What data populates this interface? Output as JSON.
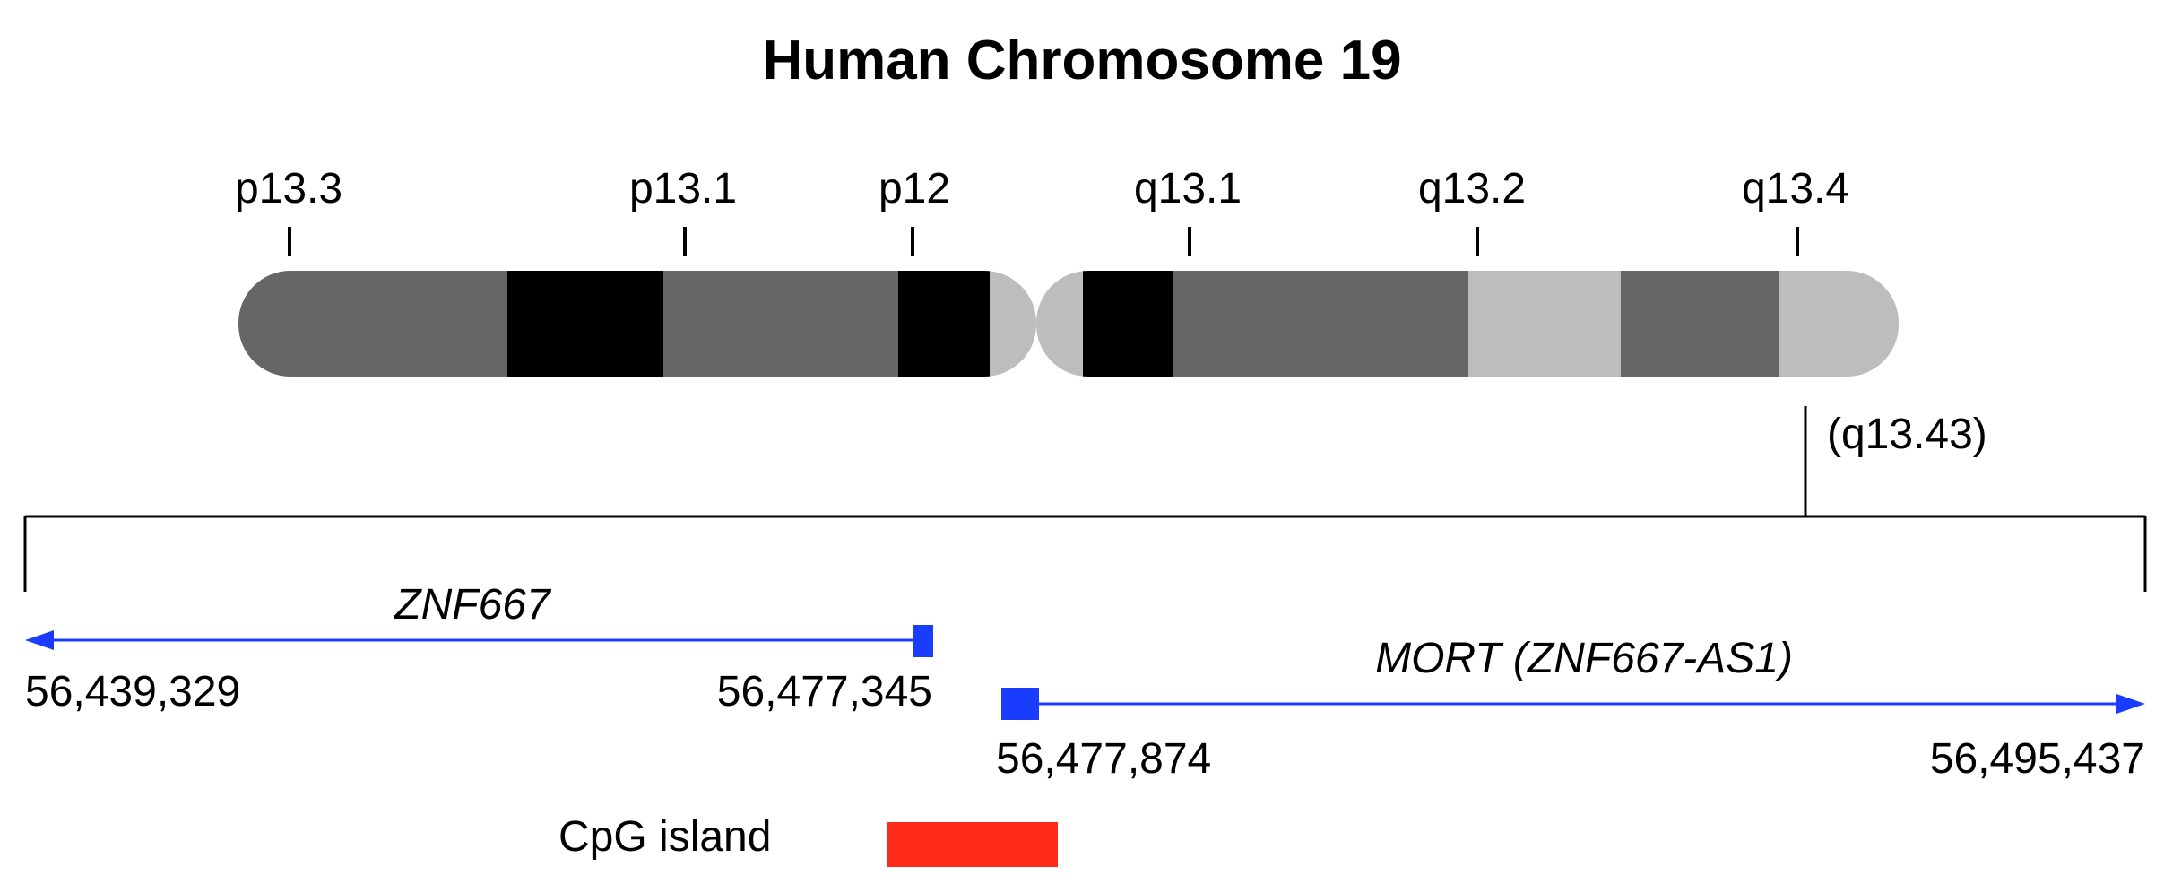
{
  "title": "Human Chromosome 19",
  "band_labels": {
    "p13_3": "p13.3",
    "p13_1": "p13.1",
    "p12": "p12",
    "q13_1": "q13.1",
    "q13_2": "q13.2",
    "q13_4": "q13.4"
  },
  "zoom_band_label": "(q13.43)",
  "band_colors": {
    "dark_gray": "#666666",
    "black": "#000000",
    "light_gray": "#bdbdbd"
  },
  "genes": {
    "znf667": {
      "name": "ZNF667",
      "start": "56,439,329",
      "end": "56,477,345",
      "strand": "minus"
    },
    "mort": {
      "name": "MORT (ZNF667-AS1)",
      "start": "56,477,874",
      "end": "56,495,437",
      "strand": "plus"
    }
  },
  "gene_color": "#1a3cff",
  "legend": {
    "cpg_label": "CpG island",
    "cpg_color": "#ff2b1a"
  }
}
